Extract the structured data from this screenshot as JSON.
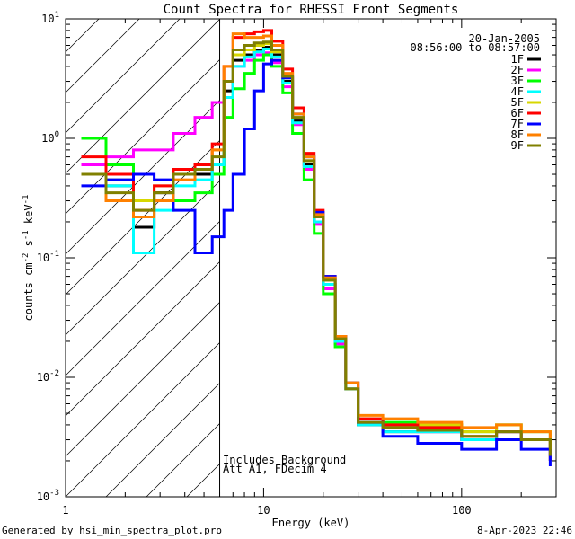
{
  "chart_data": {
    "type": "line",
    "title": "Count Spectra for RHESSI Front Segments",
    "xlabel": "Energy (keV)",
    "ylabel_parts": [
      "counts cm",
      "-2",
      " s",
      "-1",
      " keV",
      "-1"
    ],
    "x_scale": "log",
    "y_scale": "log",
    "xlim": [
      1,
      300
    ],
    "ylim": [
      0.001,
      10
    ],
    "x_major_ticks": [
      {
        "value": 1,
        "label": "1"
      },
      {
        "value": 10,
        "label": "10"
      },
      {
        "value": 100,
        "label": "100"
      }
    ],
    "y_major_ticks": [
      {
        "value": 0.001,
        "base": "10",
        "exp": "-3"
      },
      {
        "value": 0.01,
        "base": "10",
        "exp": "-2"
      },
      {
        "value": 0.1,
        "base": "10",
        "exp": "-1"
      },
      {
        "value": 1,
        "base": "10",
        "exp": "0"
      },
      {
        "value": 10,
        "base": "10",
        "exp": "1"
      }
    ],
    "date_label": "20-Jan-2005",
    "time_range": "08:56:00 to 08:57:00",
    "excluded_region_below_keV": 6.0,
    "annotations": [
      "Includes Background",
      "Att A1, FDecim 4"
    ],
    "legend_position": "top-right",
    "series": [
      {
        "name": "1F",
        "color": "#000000",
        "x": [
          1.2,
          1.6,
          2.2,
          2.8,
          3.5,
          4.5,
          5.5,
          6.3,
          7.0,
          8.0,
          9.0,
          10.0,
          11.0,
          12.5,
          14.0,
          16.0,
          18.0,
          20.0,
          23.0,
          26.0,
          30.0,
          40.0,
          60.0,
          100.0,
          150.0,
          200.0,
          280.0
        ],
        "y": [
          0.5,
          0.4,
          0.18,
          0.35,
          0.5,
          0.5,
          0.6,
          2.5,
          4.5,
          5.0,
          5.5,
          5.8,
          5.0,
          3.0,
          1.4,
          0.6,
          0.2,
          0.06,
          0.02,
          0.008,
          0.004,
          0.0035,
          0.0035,
          0.003,
          0.0035,
          0.003,
          0.002
        ]
      },
      {
        "name": "2F",
        "color": "#ff00ff",
        "x": [
          1.2,
          1.6,
          2.2,
          2.8,
          3.5,
          4.5,
          5.5,
          6.3,
          7.0,
          8.0,
          9.0,
          10.0,
          11.0,
          12.5,
          14.0,
          16.0,
          18.0,
          20.0,
          23.0,
          26.0,
          30.0,
          40.0,
          60.0,
          100.0,
          150.0,
          200.0,
          280.0
        ],
        "y": [
          0.6,
          0.7,
          0.8,
          0.8,
          1.1,
          1.5,
          2.0,
          3.0,
          4.0,
          4.5,
          5.0,
          5.2,
          4.3,
          2.7,
          1.3,
          0.55,
          0.19,
          0.055,
          0.019,
          0.008,
          0.0045,
          0.0038,
          0.0035,
          0.003,
          0.0035,
          0.003,
          0.002
        ]
      },
      {
        "name": "3F",
        "color": "#00ff00",
        "x": [
          1.2,
          1.6,
          2.2,
          2.8,
          3.5,
          4.5,
          5.5,
          6.3,
          7.0,
          8.0,
          9.0,
          10.0,
          11.0,
          12.5,
          14.0,
          16.0,
          18.0,
          20.0,
          23.0,
          26.0,
          30.0,
          40.0,
          60.0,
          100.0,
          150.0,
          200.0,
          280.0
        ],
        "y": [
          1.0,
          0.6,
          0.3,
          0.3,
          0.3,
          0.35,
          0.5,
          1.5,
          2.6,
          3.5,
          4.5,
          5.0,
          4.0,
          2.4,
          1.1,
          0.45,
          0.16,
          0.05,
          0.018,
          0.008,
          0.0045,
          0.0042,
          0.004,
          0.0035,
          0.004,
          0.0035,
          0.0025
        ]
      },
      {
        "name": "4F",
        "color": "#00ffff",
        "x": [
          1.2,
          1.6,
          2.2,
          2.8,
          3.5,
          4.5,
          5.5,
          6.3,
          7.0,
          8.0,
          9.0,
          10.0,
          11.0,
          12.5,
          14.0,
          16.0,
          18.0,
          20.0,
          23.0,
          26.0,
          30.0,
          40.0,
          60.0,
          100.0,
          150.0,
          200.0,
          280.0
        ],
        "y": [
          0.5,
          0.4,
          0.11,
          0.25,
          0.4,
          0.45,
          0.6,
          2.2,
          4.0,
          4.8,
          5.3,
          5.6,
          4.8,
          2.9,
          1.35,
          0.58,
          0.2,
          0.06,
          0.02,
          0.008,
          0.004,
          0.0035,
          0.0035,
          0.003,
          0.0035,
          0.003,
          0.002
        ]
      },
      {
        "name": "5F",
        "color": "#d7d700",
        "x": [
          1.2,
          1.6,
          2.2,
          2.8,
          3.5,
          4.5,
          5.5,
          6.3,
          7.0,
          8.0,
          9.0,
          10.0,
          11.0,
          12.5,
          14.0,
          16.0,
          18.0,
          20.0,
          23.0,
          26.0,
          30.0,
          40.0,
          60.0,
          100.0,
          150.0,
          200.0,
          280.0
        ],
        "y": [
          0.5,
          0.45,
          0.3,
          0.4,
          0.55,
          0.6,
          0.8,
          3.0,
          5.0,
          5.5,
          6.0,
          6.2,
          5.3,
          3.2,
          1.5,
          0.65,
          0.22,
          0.065,
          0.022,
          0.009,
          0.0045,
          0.004,
          0.004,
          0.0035,
          0.004,
          0.0035,
          0.0025
        ]
      },
      {
        "name": "6F",
        "color": "#ff0000",
        "x": [
          1.2,
          1.6,
          2.2,
          2.8,
          3.5,
          4.5,
          5.5,
          6.3,
          7.0,
          8.0,
          9.0,
          10.0,
          11.0,
          12.5,
          14.0,
          16.0,
          18.0,
          20.0,
          23.0,
          26.0,
          30.0,
          40.0,
          60.0,
          100.0,
          150.0,
          200.0,
          280.0
        ],
        "y": [
          0.7,
          0.5,
          0.25,
          0.4,
          0.55,
          0.6,
          0.9,
          4.0,
          7.0,
          7.5,
          7.8,
          8.0,
          6.5,
          3.8,
          1.8,
          0.75,
          0.25,
          0.07,
          0.022,
          0.009,
          0.0045,
          0.004,
          0.0038,
          0.0032,
          0.0035,
          0.003,
          0.002
        ]
      },
      {
        "name": "7F",
        "color": "#0000ff",
        "x": [
          1.2,
          1.6,
          2.2,
          2.8,
          3.5,
          4.5,
          5.5,
          6.3,
          7.0,
          8.0,
          9.0,
          10.0,
          11.0,
          12.5,
          14.0,
          16.0,
          18.0,
          20.0,
          23.0,
          26.0,
          30.0,
          40.0,
          60.0,
          100.0,
          150.0,
          200.0,
          280.0
        ],
        "y": [
          0.4,
          0.45,
          0.5,
          0.45,
          0.25,
          0.11,
          0.15,
          0.25,
          0.5,
          1.2,
          2.5,
          4.2,
          4.5,
          3.2,
          1.6,
          0.7,
          0.24,
          0.07,
          0.022,
          0.009,
          0.0042,
          0.0032,
          0.0028,
          0.0025,
          0.003,
          0.0025,
          0.0018
        ]
      },
      {
        "name": "8F",
        "color": "#ff8000",
        "x": [
          1.2,
          1.6,
          2.2,
          2.8,
          3.5,
          4.5,
          5.5,
          6.3,
          7.0,
          8.0,
          9.0,
          10.0,
          11.0,
          12.5,
          14.0,
          16.0,
          18.0,
          20.0,
          23.0,
          26.0,
          30.0,
          40.0,
          60.0,
          100.0,
          150.0,
          200.0,
          280.0
        ],
        "y": [
          0.5,
          0.3,
          0.22,
          0.3,
          0.45,
          0.55,
          0.8,
          4.0,
          7.5,
          7.0,
          7.0,
          7.2,
          6.0,
          3.5,
          1.6,
          0.7,
          0.23,
          0.068,
          0.022,
          0.009,
          0.0048,
          0.0045,
          0.0042,
          0.0038,
          0.004,
          0.0035,
          0.0025
        ]
      },
      {
        "name": "9F",
        "color": "#808000",
        "x": [
          1.2,
          1.6,
          2.2,
          2.8,
          3.5,
          4.5,
          5.5,
          6.3,
          7.0,
          8.0,
          9.0,
          10.0,
          11.0,
          12.5,
          14.0,
          16.0,
          18.0,
          20.0,
          23.0,
          26.0,
          30.0,
          40.0,
          60.0,
          100.0,
          150.0,
          200.0,
          280.0
        ],
        "y": [
          0.5,
          0.35,
          0.25,
          0.35,
          0.5,
          0.55,
          0.7,
          3.0,
          5.5,
          6.0,
          6.3,
          6.4,
          5.5,
          3.3,
          1.5,
          0.65,
          0.22,
          0.065,
          0.021,
          0.008,
          0.0042,
          0.0038,
          0.0036,
          0.0032,
          0.0035,
          0.003,
          0.0022
        ]
      }
    ]
  },
  "footer": {
    "generated_by": "Generated by hsi_min_spectra_plot.pro",
    "timestamp": "8-Apr-2023 22:46"
  }
}
